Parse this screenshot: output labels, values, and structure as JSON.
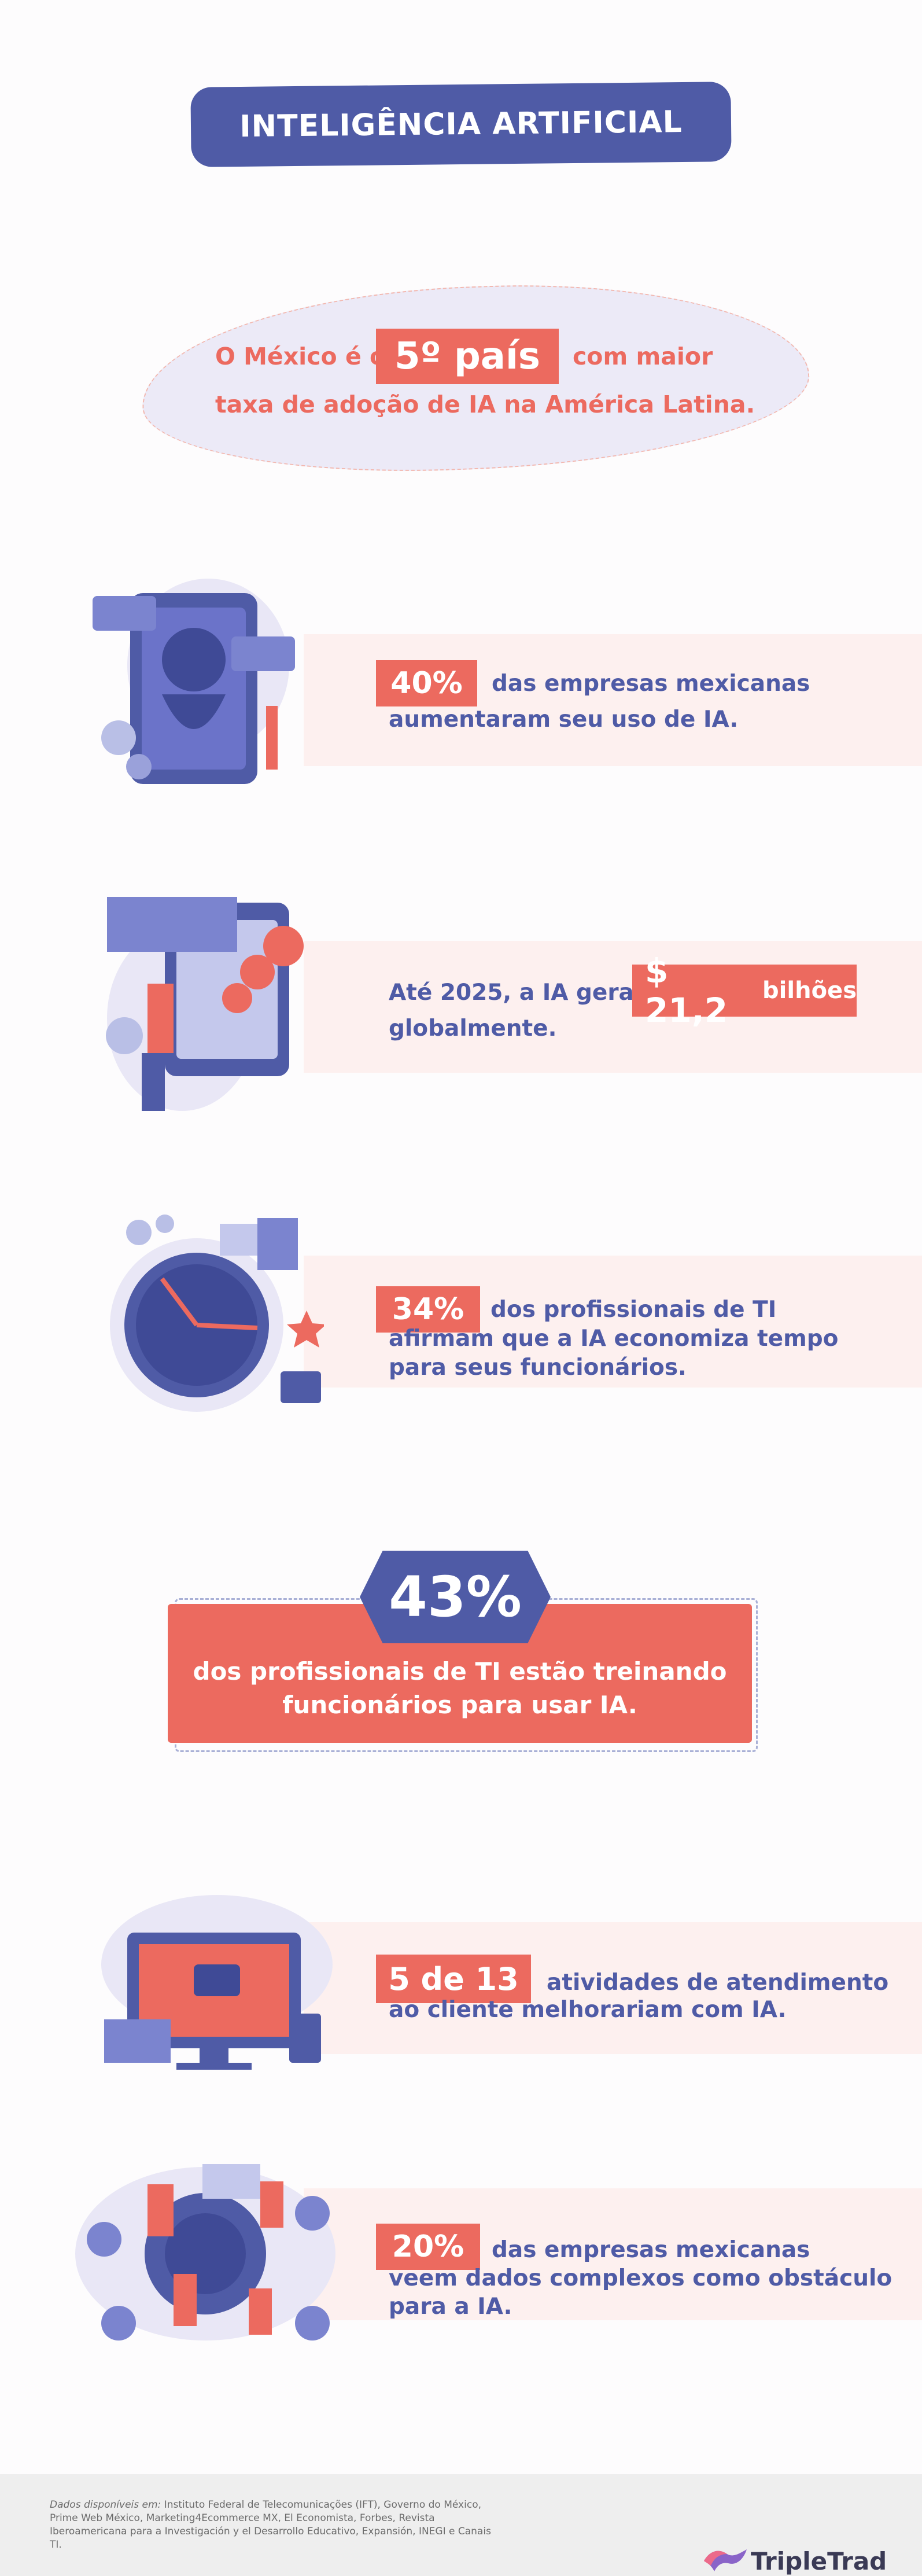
{
  "title": "INTELIGÊNCIA ARTIFICIAL",
  "rank": {
    "prefix": "O México é o",
    "highlight": "5º país",
    "suffix": "com maior",
    "line2": "taxa de adoção de IA na América Latina."
  },
  "stats": [
    {
      "highlight": "40%",
      "lines": [
        "das empresas mexicanas",
        "aumentaram seu uso de IA."
      ]
    },
    {
      "prefix": "Até 2025, a IA gerará",
      "highlight": "$ 21,2",
      "suffix": "bilhões",
      "line2": "globalmente."
    },
    {
      "highlight": "34%",
      "lines": [
        "dos profissionais de TI",
        "afirmam que a IA economiza tempo",
        "para seus funcionários."
      ]
    },
    {
      "highlight": "5 de 13",
      "lines": [
        "atividades de atendimento",
        "ao cliente melhorariam com IA."
      ]
    },
    {
      "highlight": "20%",
      "lines": [
        "das empresas mexicanas",
        "veem dados complexos como obstáculo",
        "para a IA."
      ]
    }
  ],
  "callout": {
    "value": "43%",
    "line1": "dos profissionais de TI estão treinando",
    "line2": "funcionários para usar IA."
  },
  "footer": {
    "sources_label": "Dados disponíveis em:",
    "sources_text": "Instituto Federal de Telecomunicações (IFT), Governo do México, Prime Web México, Marketing4Ecommerce MX, El Economista, Forbes, Revista Iberoamericana para a Investigación y el Desarrollo Educativo, Expansión, INEGI e Canais TI.",
    "brand": "TripleTrad"
  },
  "colors": {
    "accent": "#ec6a5f",
    "brand": "#4f5ba6",
    "band": "#fdf0ef"
  }
}
